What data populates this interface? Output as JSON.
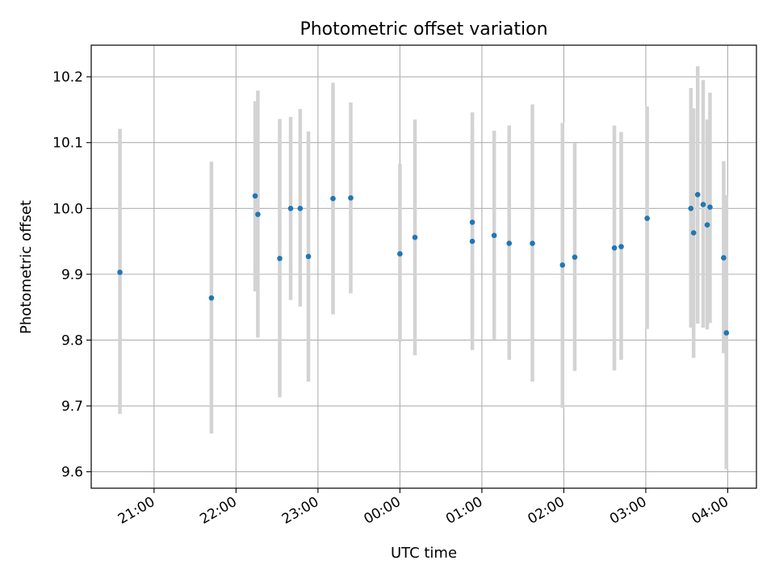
{
  "chart_data": {
    "type": "scatter",
    "title": "Photometric offset variation",
    "xlabel": "UTC time",
    "ylabel": "Photometric offset",
    "x_units": "UTC time on a 20:00–04:00 night (hours continue past midnight)",
    "xlim": [
      "20:14",
      "04:21"
    ],
    "ylim": [
      9.575,
      10.248
    ],
    "x_ticks": [
      "21:00",
      "22:00",
      "23:00",
      "00:00",
      "01:00",
      "02:00",
      "03:00",
      "04:00"
    ],
    "y_ticks": [
      "9.6",
      "9.7",
      "9.8",
      "9.9",
      "10.0",
      "10.1",
      "10.2"
    ],
    "grid": true,
    "marker_color": "#1f77b4",
    "errorbar_color": "#d3d3d3",
    "series": [
      {
        "points": [
          {
            "time": "20:35",
            "y": 9.903,
            "yerr_low": 9.688,
            "yerr_high": 10.121
          },
          {
            "time": "21:42",
            "y": 9.864,
            "yerr_low": 9.658,
            "yerr_high": 10.071
          },
          {
            "time": "22:14",
            "y": 10.019,
            "yerr_low": 9.874,
            "yerr_high": 10.163
          },
          {
            "time": "22:16",
            "y": 9.991,
            "yerr_low": 9.804,
            "yerr_high": 10.179
          },
          {
            "time": "22:32",
            "y": 9.924,
            "yerr_low": 9.713,
            "yerr_high": 10.136
          },
          {
            "time": "22:40",
            "y": 10.0,
            "yerr_low": 9.861,
            "yerr_high": 10.139
          },
          {
            "time": "22:47",
            "y": 10.0,
            "yerr_low": 9.851,
            "yerr_high": 10.151
          },
          {
            "time": "22:53",
            "y": 9.927,
            "yerr_low": 9.737,
            "yerr_high": 10.117
          },
          {
            "time": "23:11",
            "y": 10.015,
            "yerr_low": 9.839,
            "yerr_high": 10.191
          },
          {
            "time": "23:24",
            "y": 10.016,
            "yerr_low": 9.871,
            "yerr_high": 10.161
          },
          {
            "time": "00:00",
            "y": 9.931,
            "yerr_low": 9.797,
            "yerr_high": 10.068
          },
          {
            "time": "00:11",
            "y": 9.956,
            "yerr_low": 9.777,
            "yerr_high": 10.135
          },
          {
            "time": "00:53",
            "y": 9.979,
            "yerr_low": 9.812,
            "yerr_high": 10.146
          },
          {
            "time": "00:53",
            "y": 9.95,
            "yerr_low": 9.785,
            "yerr_high": 10.114
          },
          {
            "time": "01:09",
            "y": 9.959,
            "yerr_low": 9.801,
            "yerr_high": 10.118
          },
          {
            "time": "01:20",
            "y": 9.947,
            "yerr_low": 9.77,
            "yerr_high": 10.126
          },
          {
            "time": "01:37",
            "y": 9.947,
            "yerr_low": 9.737,
            "yerr_high": 10.158
          },
          {
            "time": "01:59",
            "y": 9.914,
            "yerr_low": 9.697,
            "yerr_high": 10.13
          },
          {
            "time": "02:08",
            "y": 9.926,
            "yerr_low": 9.753,
            "yerr_high": 10.099
          },
          {
            "time": "02:37",
            "y": 9.94,
            "yerr_low": 9.754,
            "yerr_high": 10.126
          },
          {
            "time": "02:42",
            "y": 9.942,
            "yerr_low": 9.77,
            "yerr_high": 10.116
          },
          {
            "time": "03:01",
            "y": 9.985,
            "yerr_low": 9.817,
            "yerr_high": 10.155
          },
          {
            "time": "03:33",
            "y": 10.0,
            "yerr_low": 9.819,
            "yerr_high": 10.183
          },
          {
            "time": "03:35",
            "y": 9.963,
            "yerr_low": 9.773,
            "yerr_high": 10.152
          },
          {
            "time": "03:38",
            "y": 10.021,
            "yerr_low": 9.825,
            "yerr_high": 10.216
          },
          {
            "time": "03:42",
            "y": 10.006,
            "yerr_low": 9.819,
            "yerr_high": 10.195
          },
          {
            "time": "03:45",
            "y": 9.975,
            "yerr_low": 9.816,
            "yerr_high": 10.135
          },
          {
            "time": "03:47",
            "y": 10.002,
            "yerr_low": 9.826,
            "yerr_high": 10.176
          },
          {
            "time": "03:57",
            "y": 9.925,
            "yerr_low": 9.78,
            "yerr_high": 10.072
          },
          {
            "time": "03:59",
            "y": 9.811,
            "yerr_low": 9.604,
            "yerr_high": 10.02
          }
        ]
      }
    ]
  }
}
